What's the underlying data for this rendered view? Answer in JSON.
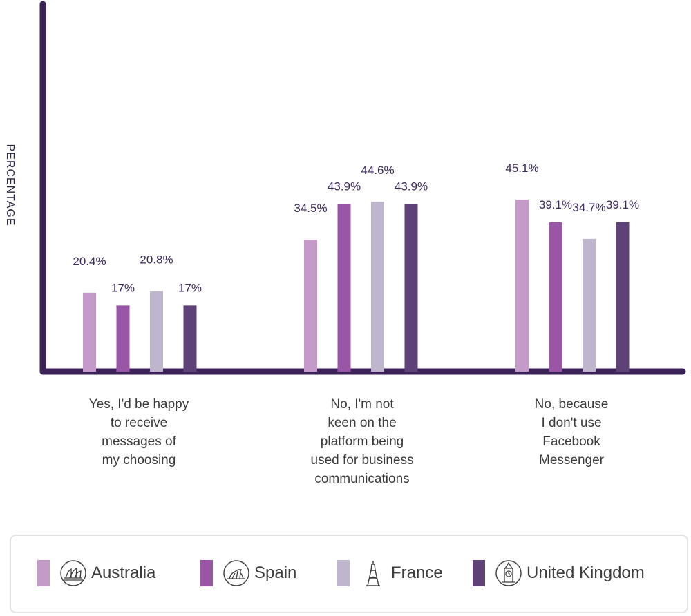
{
  "chart_data": {
    "type": "bar",
    "ylabel": "PERCENTAGE",
    "xlabel": "",
    "ylim": [
      0,
      100
    ],
    "categories": [
      "Yes, I'd be happy\nto receive\nmessages of\nmy choosing",
      "No, I'm not\nkeen on the\nplatform being\nused for business\ncommunications",
      "No, because\nI don't use\nFacebook\nMessenger"
    ],
    "series": [
      {
        "name": "Australia",
        "color": "#c39ac8",
        "values": [
          20.4,
          34.5,
          45.1
        ],
        "labels": [
          "20.4%",
          "34.5%",
          "45.1%"
        ]
      },
      {
        "name": "Spain",
        "color": "#9a56a6",
        "values": [
          17,
          43.9,
          39.1
        ],
        "labels": [
          "17%",
          "43.9%",
          "39.1%"
        ]
      },
      {
        "name": "France",
        "color": "#bfb5cc",
        "values": [
          20.8,
          44.6,
          34.7
        ],
        "labels": [
          "20.8%",
          "44.6%",
          "34.7%"
        ]
      },
      {
        "name": "United Kingdom",
        "color": "#5e4277",
        "values": [
          17,
          43.9,
          39.1
        ],
        "labels": [
          "17%",
          "43.9%",
          "39.1%"
        ]
      }
    ],
    "legend_position": "bottom",
    "grid": false
  },
  "legend": {
    "items": [
      {
        "label": "Australia",
        "color": "#c39ac8",
        "icon": "sydney-opera-house-icon"
      },
      {
        "label": "Spain",
        "color": "#9a56a6",
        "icon": "guggenheim-museum-icon"
      },
      {
        "label": "France",
        "color": "#bfb5cc",
        "icon": "eiffel-tower-icon"
      },
      {
        "label": "United Kingdom",
        "color": "#5e4277",
        "icon": "big-ben-icon"
      }
    ]
  },
  "colors": {
    "axis": "#3b2358",
    "label": "#3d2a5c"
  }
}
